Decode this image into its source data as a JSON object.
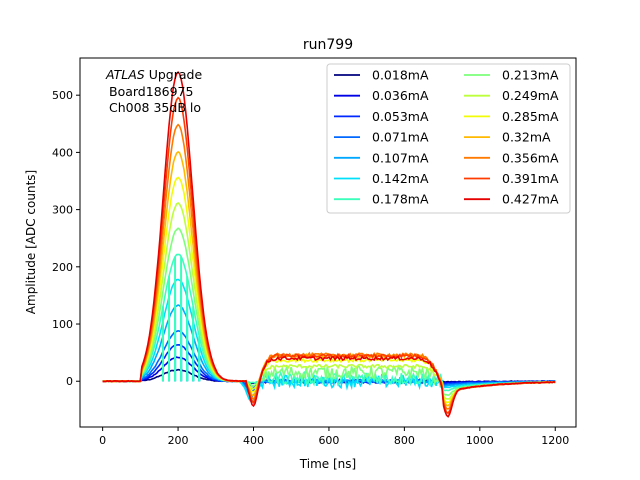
{
  "chart_data": {
    "type": "line",
    "title": "run799",
    "xlabel": "Time [ns]",
    "ylabel": "Amplitude [ADC counts]",
    "xlim": [
      -60,
      1255
    ],
    "ylim": [
      -80,
      565
    ],
    "xticks": [
      0,
      200,
      400,
      600,
      800,
      1000,
      1200
    ],
    "yticks": [
      0,
      100,
      200,
      300,
      400,
      500
    ],
    "annotation": {
      "italic": "ATLAS",
      "rest": " Upgrade",
      "line2": "Board186975",
      "line3": "Ch008 35dB lo"
    },
    "legend_location": "upper-right",
    "series": [
      {
        "name": "0.018mA",
        "peak": 20,
        "color": "#00007f"
      },
      {
        "name": "0.036mA",
        "peak": 42,
        "color": "#0000e6"
      },
      {
        "name": "0.053mA",
        "peak": 64,
        "color": "#0028ff"
      },
      {
        "name": "0.071mA",
        "peak": 88,
        "color": "#0068ff"
      },
      {
        "name": "0.107mA",
        "peak": 133,
        "color": "#00a8ff"
      },
      {
        "name": "0.142mA",
        "peak": 178,
        "color": "#00e0fb"
      },
      {
        "name": "0.178mA",
        "peak": 222,
        "color": "#3affbc"
      },
      {
        "name": "0.213mA",
        "peak": 267,
        "color": "#7cff7a"
      },
      {
        "name": "0.249mA",
        "peak": 311,
        "color": "#bcff3a"
      },
      {
        "name": "0.285mA",
        "peak": 356,
        "color": "#f1fc06"
      },
      {
        "name": "0.32mA",
        "peak": 401,
        "color": "#ffb900"
      },
      {
        "name": "0.356mA",
        "peak": 448,
        "color": "#ff7a00"
      },
      {
        "name": "0.391mA",
        "peak": 495,
        "color": "#ff3b00"
      },
      {
        "name": "0.427mA",
        "peak": 540,
        "color": "#e60000"
      }
    ]
  }
}
